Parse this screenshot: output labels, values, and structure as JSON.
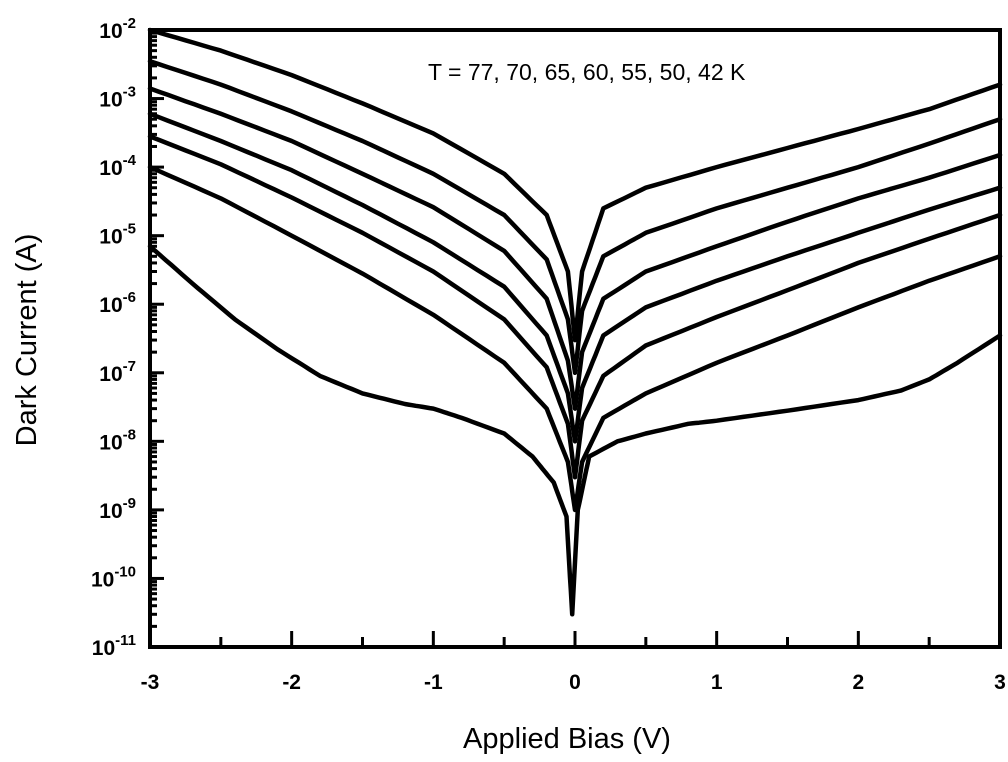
{
  "chart_data": {
    "type": "line",
    "xlabel": "Applied Bias (V)",
    "ylabel": "Dark Current (A)",
    "annotation": "T = 77, 70, 65, 60, 55, 50, 42 K",
    "xlim": [
      -3,
      3
    ],
    "ylim_log10": [
      -11,
      -2
    ],
    "y_scale": "log",
    "grid": false,
    "legend": "none",
    "x_ticks": [
      -3,
      -2,
      -1,
      0,
      1,
      2,
      3
    ],
    "x_tick_labels": [
      "-3",
      "-2",
      "-1",
      "0",
      "1",
      "2",
      "3"
    ],
    "y_ticks": [
      -2,
      -3,
      -4,
      -5,
      -6,
      -7,
      -8,
      -9,
      -10,
      -11
    ],
    "y_tick_bases": [
      "10",
      "10",
      "10",
      "10",
      "10",
      "10",
      "10",
      "10",
      "10",
      "10"
    ],
    "y_tick_exponents": [
      "-2",
      "-3",
      "-4",
      "-5",
      "-6",
      "-7",
      "-8",
      "-9",
      "-10",
      "-11"
    ],
    "series": [
      {
        "x": [
          -3,
          -2.5,
          -2,
          -1.5,
          -1,
          -0.5,
          -0.2,
          -0.05,
          0,
          0.05,
          0.2,
          0.5,
          1,
          1.5,
          2,
          2.5,
          3
        ],
        "y": [
          0.01,
          0.005,
          0.0022,
          0.00085,
          0.00031,
          8e-05,
          2e-05,
          3e-06,
          3e-07,
          3e-06,
          2.5e-05,
          5e-05,
          0.0001,
          0.00019,
          0.00036,
          0.0007,
          0.0016
        ]
      },
      {
        "x": [
          -3,
          -2.5,
          -2,
          -1.5,
          -1,
          -0.5,
          -0.2,
          -0.05,
          0,
          0.05,
          0.2,
          0.5,
          1,
          1.5,
          2,
          2.5,
          3
        ],
        "y": [
          0.0035,
          0.0016,
          0.00065,
          0.00024,
          8e-05,
          2e-05,
          4.5e-06,
          6e-07,
          1e-07,
          8e-07,
          5e-06,
          1.1e-05,
          2.5e-05,
          5e-05,
          0.0001,
          0.00022,
          0.0005
        ]
      },
      {
        "x": [
          -3,
          -2.5,
          -2,
          -1.5,
          -1,
          -0.5,
          -0.2,
          -0.05,
          0,
          0.05,
          0.2,
          0.5,
          1,
          1.5,
          2,
          2.5,
          3
        ],
        "y": [
          0.0014,
          0.0006,
          0.00024,
          8e-05,
          2.6e-05,
          6e-06,
          1.2e-06,
          1.5e-07,
          3e-08,
          2e-07,
          1.2e-06,
          3e-06,
          7e-06,
          1.6e-05,
          3.5e-05,
          7e-05,
          0.00015
        ]
      },
      {
        "x": [
          -3,
          -2.5,
          -2,
          -1.5,
          -1,
          -0.5,
          -0.2,
          -0.05,
          0,
          0.05,
          0.2,
          0.5,
          1,
          1.5,
          2,
          2.5,
          3
        ],
        "y": [
          0.0006,
          0.00024,
          9e-05,
          2.8e-05,
          8e-06,
          1.8e-06,
          3.5e-07,
          5e-08,
          1e-08,
          6e-08,
          3.5e-07,
          9e-07,
          2.2e-06,
          5e-06,
          1.1e-05,
          2.4e-05,
          5e-05
        ]
      },
      {
        "x": [
          -3,
          -2.5,
          -2,
          -1.5,
          -1,
          -0.5,
          -0.2,
          -0.05,
          0,
          0.05,
          0.2,
          0.5,
          1,
          1.5,
          2,
          2.5,
          3
        ],
        "y": [
          0.00028,
          0.00011,
          3.6e-05,
          1.1e-05,
          3e-06,
          6e-07,
          1.2e-07,
          1.8e-08,
          3e-09,
          2e-08,
          9e-08,
          2.5e-07,
          6.5e-07,
          1.6e-06,
          4e-06,
          9e-06,
          2e-05
        ]
      },
      {
        "x": [
          -3,
          -2.5,
          -2,
          -1.5,
          -1,
          -0.5,
          -0.2,
          -0.05,
          0,
          0.05,
          0.2,
          0.5,
          1,
          1.5,
          2,
          2.5,
          3
        ],
        "y": [
          0.0001,
          3.5e-05,
          1e-05,
          2.8e-06,
          7e-07,
          1.4e-07,
          3e-08,
          5e-09,
          1e-09,
          5e-09,
          2.2e-08,
          5e-08,
          1.4e-07,
          3.5e-07,
          9e-07,
          2.2e-06,
          5e-06
        ]
      },
      {
        "x": [
          -3,
          -2.7,
          -2.4,
          -2.1,
          -1.8,
          -1.5,
          -1.2,
          -1.0,
          -0.8,
          -0.5,
          -0.3,
          -0.15,
          -0.06,
          -0.02,
          0.02,
          0.1,
          0.3,
          0.5,
          0.8,
          1.0,
          1.5,
          2.0,
          2.3,
          2.5,
          2.7,
          3
        ],
        "y": [
          7e-06,
          2e-06,
          6e-07,
          2.2e-07,
          9e-08,
          5e-08,
          3.5e-08,
          3e-08,
          2.2e-08,
          1.3e-08,
          6e-09,
          2.5e-09,
          8e-10,
          3e-11,
          1e-09,
          6e-09,
          1e-08,
          1.3e-08,
          1.8e-08,
          2e-08,
          2.8e-08,
          4e-08,
          5.5e-08,
          8e-08,
          1.4e-07,
          3.5e-07
        ]
      }
    ]
  }
}
